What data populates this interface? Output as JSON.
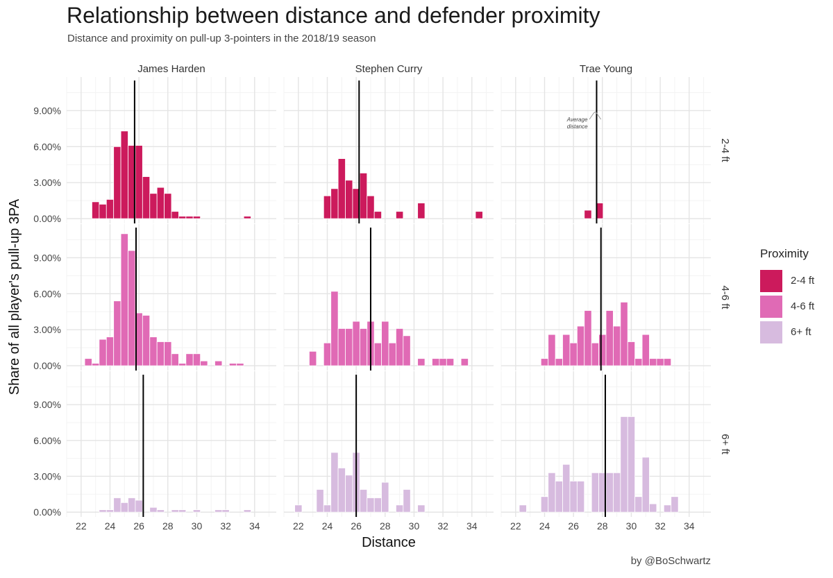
{
  "title": "Relationship between distance and defender proximity",
  "subtitle": "Distance and proximity on pull-up 3-pointers in the 2018/19 season",
  "caption": "by @BoSchwartz",
  "annotation": {
    "line1": "Average",
    "line2": "distance"
  },
  "legend": {
    "title": "Proximity",
    "items": [
      {
        "label": "2-4 ft",
        "color": "#cc1a5c"
      },
      {
        "label": "4-6 ft",
        "color": "#e06ab5"
      },
      {
        "label": "6+ ft",
        "color": "#d7bbdf"
      }
    ]
  },
  "chart_data": {
    "type": "bar",
    "xlabel": "Distance",
    "ylabel": "Share of all player's pull-up 3PA",
    "xlim": [
      21,
      35.5
    ],
    "ylim": [
      -0.4,
      11.8
    ],
    "x_ticks": [
      22,
      24,
      26,
      28,
      30,
      32,
      34
    ],
    "x_tick_labels": [
      "22",
      "24",
      "26",
      "28",
      "30",
      "32",
      "34"
    ],
    "y_ticks": [
      0,
      3,
      6,
      9
    ],
    "y_tick_labels": [
      "0.00%",
      "3.00%",
      "6.00%",
      "9.00%"
    ],
    "bin_width": 0.5,
    "grid": true,
    "columns": [
      "James Harden",
      "Stephen Curry",
      "Trae Young"
    ],
    "rows": [
      "2-4 ft",
      "4-6 ft",
      "6+ ft"
    ],
    "panels": [
      {
        "player": "James Harden",
        "proximity": "2-4 ft",
        "mean_distance": 25.7,
        "bins": [
          [
            23,
            1.4
          ],
          [
            23.5,
            1.2
          ],
          [
            24,
            1.6
          ],
          [
            24.5,
            6.0
          ],
          [
            25,
            7.3
          ],
          [
            25.5,
            6.1
          ],
          [
            26,
            6.1
          ],
          [
            26.5,
            3.5
          ],
          [
            27,
            2.1
          ],
          [
            27.5,
            2.6
          ],
          [
            28,
            2.1
          ],
          [
            28.5,
            0.6
          ],
          [
            29,
            0.2
          ],
          [
            29.5,
            0.2
          ],
          [
            30,
            0.2
          ],
          [
            33.5,
            0.2
          ]
        ]
      },
      {
        "player": "Stephen Curry",
        "proximity": "2-4 ft",
        "mean_distance": 26.2,
        "bins": [
          [
            24,
            1.9
          ],
          [
            24.5,
            2.5
          ],
          [
            25,
            5.0
          ],
          [
            25.5,
            3.2
          ],
          [
            26,
            2.5
          ],
          [
            26.5,
            3.8
          ],
          [
            27,
            1.9
          ],
          [
            27.5,
            0.6
          ],
          [
            29,
            0.6
          ],
          [
            30.5,
            1.3
          ],
          [
            34.5,
            0.6
          ]
        ]
      },
      {
        "player": "Trae Young",
        "proximity": "2-4 ft",
        "mean_distance": 27.6,
        "bins": [
          [
            27,
            0.7
          ],
          [
            27.8,
            1.3
          ]
        ]
      },
      {
        "player": "James Harden",
        "proximity": "4-6 ft",
        "mean_distance": 25.8,
        "bins": [
          [
            22.5,
            0.6
          ],
          [
            23,
            0.2
          ],
          [
            23.5,
            2.2
          ],
          [
            24,
            2.4
          ],
          [
            24.5,
            5.4
          ],
          [
            25,
            11.0
          ],
          [
            25.5,
            9.6
          ],
          [
            26,
            4.4
          ],
          [
            26.5,
            4.2
          ],
          [
            27,
            2.4
          ],
          [
            27.5,
            2.0
          ],
          [
            28,
            2.0
          ],
          [
            28.5,
            1.0
          ],
          [
            29,
            0.2
          ],
          [
            29.5,
            1.0
          ],
          [
            30,
            1.0
          ],
          [
            30.5,
            0.4
          ],
          [
            31.5,
            0.4
          ],
          [
            32.5,
            0.2
          ],
          [
            33,
            0.2
          ]
        ]
      },
      {
        "player": "Stephen Curry",
        "proximity": "4-6 ft",
        "mean_distance": 27.0,
        "bins": [
          [
            23,
            1.2
          ],
          [
            24,
            1.9
          ],
          [
            24.5,
            6.2
          ],
          [
            25,
            3.1
          ],
          [
            25.5,
            3.1
          ],
          [
            26,
            3.7
          ],
          [
            26.5,
            3.1
          ],
          [
            27,
            3.7
          ],
          [
            27.5,
            1.9
          ],
          [
            28,
            3.7
          ],
          [
            28.5,
            1.9
          ],
          [
            29,
            3.1
          ],
          [
            29.5,
            2.5
          ],
          [
            30.5,
            0.6
          ],
          [
            31.5,
            0.6
          ],
          [
            32,
            0.6
          ],
          [
            32.5,
            0.6
          ],
          [
            33.5,
            0.6
          ]
        ]
      },
      {
        "player": "Trae Young",
        "proximity": "4-6 ft",
        "mean_distance": 27.9,
        "bins": [
          [
            24,
            0.6
          ],
          [
            24.5,
            2.6
          ],
          [
            25,
            0.6
          ],
          [
            25.5,
            2.6
          ],
          [
            26,
            1.9
          ],
          [
            26.5,
            3.3
          ],
          [
            27,
            4.6
          ],
          [
            27.5,
            1.9
          ],
          [
            28,
            2.6
          ],
          [
            28.5,
            4.6
          ],
          [
            29,
            3.3
          ],
          [
            29.5,
            5.3
          ],
          [
            30,
            2.0
          ],
          [
            30.5,
            0.6
          ],
          [
            31,
            2.6
          ],
          [
            31.5,
            0.6
          ],
          [
            32,
            0.6
          ],
          [
            32.5,
            0.6
          ]
        ]
      },
      {
        "player": "James Harden",
        "proximity": "6+ ft",
        "mean_distance": 26.3,
        "bins": [
          [
            23.5,
            0.2
          ],
          [
            24,
            0.2
          ],
          [
            24.5,
            1.2
          ],
          [
            25,
            0.8
          ],
          [
            25.5,
            1.2
          ],
          [
            26,
            1.0
          ],
          [
            27,
            0.4
          ],
          [
            27.5,
            0.2
          ],
          [
            28.5,
            0.2
          ],
          [
            29,
            0.2
          ],
          [
            30,
            0.2
          ],
          [
            31.5,
            0.2
          ],
          [
            32,
            0.2
          ],
          [
            33.5,
            0.2
          ]
        ]
      },
      {
        "player": "Stephen Curry",
        "proximity": "6+ ft",
        "mean_distance": 26.0,
        "bins": [
          [
            22,
            0.6
          ],
          [
            23.5,
            1.9
          ],
          [
            24,
            0.6
          ],
          [
            24.5,
            5.0
          ],
          [
            25,
            3.7
          ],
          [
            25.5,
            3.1
          ],
          [
            26,
            5.0
          ],
          [
            26.5,
            1.9
          ],
          [
            27,
            1.2
          ],
          [
            27.5,
            1.2
          ],
          [
            28,
            2.5
          ],
          [
            29,
            0.6
          ],
          [
            29.5,
            1.9
          ],
          [
            30.5,
            0.6
          ]
        ]
      },
      {
        "player": "Trae Young",
        "proximity": "6+ ft",
        "mean_distance": 28.2,
        "bins": [
          [
            22.5,
            0.6
          ],
          [
            24,
            1.3
          ],
          [
            24.5,
            3.3
          ],
          [
            25,
            2.6
          ],
          [
            25.5,
            4.0
          ],
          [
            26,
            2.6
          ],
          [
            26.5,
            2.6
          ],
          [
            27.5,
            3.3
          ],
          [
            28,
            3.3
          ],
          [
            28.5,
            3.3
          ],
          [
            29,
            3.3
          ],
          [
            29.5,
            8.0
          ],
          [
            30,
            8.0
          ],
          [
            30.5,
            1.3
          ],
          [
            31,
            4.6
          ],
          [
            31.5,
            0.7
          ],
          [
            32.5,
            0.6
          ],
          [
            33,
            1.3
          ]
        ]
      }
    ]
  }
}
